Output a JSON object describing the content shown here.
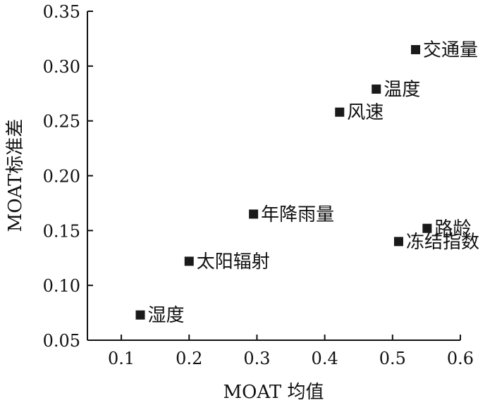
{
  "chart_data": {
    "type": "scatter",
    "xlabel": "MOAT 均值",
    "ylabel": "MOAT标准差",
    "xlim": [
      0.05,
      0.6
    ],
    "ylim": [
      0.05,
      0.35
    ],
    "xticks": [
      "0.1",
      "0.2",
      "0.3",
      "0.4",
      "0.5",
      "0.6"
    ],
    "yticks": [
      "0.05",
      "0.10",
      "0.15",
      "0.20",
      "0.25",
      "0.30",
      "0.35"
    ],
    "grid": false,
    "marker_color": "#1a1a1a",
    "points": [
      {
        "label": "交通量",
        "x": 0.534,
        "y": 0.315
      },
      {
        "label": "温度",
        "x": 0.476,
        "y": 0.279
      },
      {
        "label": "风速",
        "x": 0.422,
        "y": 0.258
      },
      {
        "label": "年降雨量",
        "x": 0.295,
        "y": 0.165
      },
      {
        "label": "路龄",
        "x": 0.551,
        "y": 0.152
      },
      {
        "label": "冻结指数",
        "x": 0.509,
        "y": 0.14
      },
      {
        "label": "太阳辐射",
        "x": 0.2,
        "y": 0.122
      },
      {
        "label": "湿度",
        "x": 0.128,
        "y": 0.073
      }
    ]
  }
}
